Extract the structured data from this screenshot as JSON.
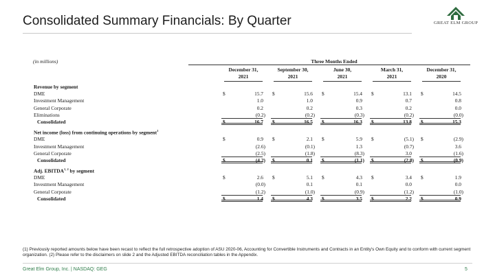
{
  "title": "Consolidated Summary Financials: By Quarter",
  "logo": {
    "text": "GREAT ELM GROUP"
  },
  "table": {
    "units": "(in millions)",
    "period_header": "Three Months Ended",
    "columns": [
      {
        "line1": "December 31,",
        "line2": "2021"
      },
      {
        "line1": "September 30,",
        "line2": "2021"
      },
      {
        "line1": "June 30,",
        "line2": "2021"
      },
      {
        "line1": "March 31,",
        "line2": "2021"
      },
      {
        "line1": "December 31,",
        "line2": "2020"
      }
    ],
    "currency_symbol": "$",
    "sections": [
      {
        "title": "Revenue by segment",
        "title_sup": "",
        "rows": [
          {
            "label": "DME",
            "dollar": true,
            "values": [
              "15.7",
              "15.6",
              "15.4",
              "13.1",
              "14.5"
            ]
          },
          {
            "label": "Investment Management",
            "dollar": false,
            "values": [
              "1.0",
              "1.0",
              "0.9",
              "0.7",
              "0.8"
            ]
          },
          {
            "label": "General Corporate",
            "dollar": false,
            "values": [
              "0.2",
              "0.2",
              "0.3",
              "0.2",
              "0.0"
            ]
          },
          {
            "label": "Eliminations",
            "dollar": false,
            "values": [
              "(0.2)",
              "(0.2)",
              "(0.3)",
              "(0.2)",
              "(0.0)"
            ]
          }
        ],
        "total": {
          "label": "Consolidated",
          "values": [
            "16.7",
            "16.5",
            "16.3",
            "13.8",
            "15.3"
          ]
        }
      },
      {
        "title": "Net income (loss) from continuing operations by segment",
        "title_sup": "1",
        "rows": [
          {
            "label": "DME",
            "dollar": true,
            "values": [
              "0.9",
              "2.1",
              "5.9",
              "(5.1)",
              "(2.9)"
            ]
          },
          {
            "label": "Investment Management",
            "dollar": false,
            "values": [
              "(2.6)",
              "(0.1)",
              "1.3",
              "(0.7)",
              "3.6"
            ]
          },
          {
            "label": "General Corporate",
            "dollar": false,
            "values": [
              "(2.5)",
              "(1.8)",
              "(8.3)",
              "3.0",
              "(1.6)"
            ]
          }
        ],
        "total": {
          "label": "Consolidated",
          "values": [
            "(4.2)",
            "0.1",
            "(1.1)",
            "(2.8)",
            "(0.9)"
          ]
        }
      },
      {
        "title": "Adj. EBITDA",
        "title_sup": "1, 2",
        "title_suffix": " by segment",
        "rows": [
          {
            "label": "DME",
            "dollar": true,
            "values": [
              "2.6",
              "5.1",
              "4.3",
              "3.4",
              "1.9"
            ]
          },
          {
            "label": "Investment Management",
            "dollar": false,
            "values": [
              "(0.0)",
              "0.1",
              "0.1",
              "0.0",
              "0.0"
            ]
          },
          {
            "label": "General Corporate",
            "dollar": false,
            "values": [
              "(1.2)",
              "(1.0)",
              "(0.9)",
              "(1.2)",
              "(1.0)"
            ]
          }
        ],
        "total": {
          "label": "Consolidated",
          "values": [
            "1.4",
            "4.3",
            "3.5",
            "2.2",
            "0.9"
          ]
        }
      }
    ]
  },
  "footnote": "(1) Previously reported amounts below have been recast to reflect the full retrospective adoption of ASU 2020-06, Accounting for Convertible Instruments and Contracts in an Entity's Own Equity and to conform with current segment organization. (2) Please refer to the disclaimers on slide 2 and the Adjusted EBITDA reconciliation tables in the Appendix.",
  "footer": {
    "left": "Great Elm Group, Inc. | NASDAQ: GEG",
    "page": "5"
  },
  "colors": {
    "brand_green": "#2f7d4a",
    "logo_green": "#2e6b3f"
  }
}
